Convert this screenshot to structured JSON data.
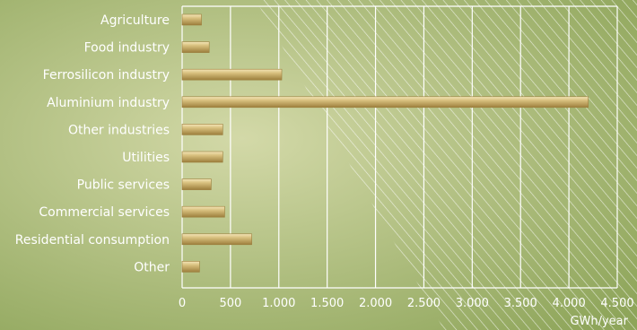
{
  "chart_data": {
    "type": "bar",
    "orientation": "horizontal",
    "categories": [
      "Agriculture",
      "Food industry",
      "Ferrosilicon industry",
      "Aluminium industry",
      "Other industries",
      "Utilities",
      "Public services",
      "Commercial services",
      "Residential consumption",
      "Other"
    ],
    "values": [
      200,
      280,
      1030,
      4200,
      420,
      420,
      300,
      440,
      720,
      180
    ],
    "xlim": [
      0,
      4500
    ],
    "xticks": [
      0,
      500,
      1000,
      1500,
      2000,
      2500,
      3000,
      3500,
      4000,
      4500
    ],
    "xtick_labels": [
      "0",
      "500",
      "1.000",
      "1.500",
      "2.000",
      "2.500",
      "3.000",
      "3.500",
      "4.000",
      "4.500"
    ],
    "unit_label": "GWh/year",
    "grid": true,
    "colors": {
      "background_light": "#d3d9a8",
      "background_dark": "#8ea55a",
      "bar_light": "#f4e6b8",
      "bar_mid": "#d8c07e",
      "bar_dark": "#9c7e3c",
      "grid": "#ffffff",
      "text": "#ffffff"
    }
  }
}
